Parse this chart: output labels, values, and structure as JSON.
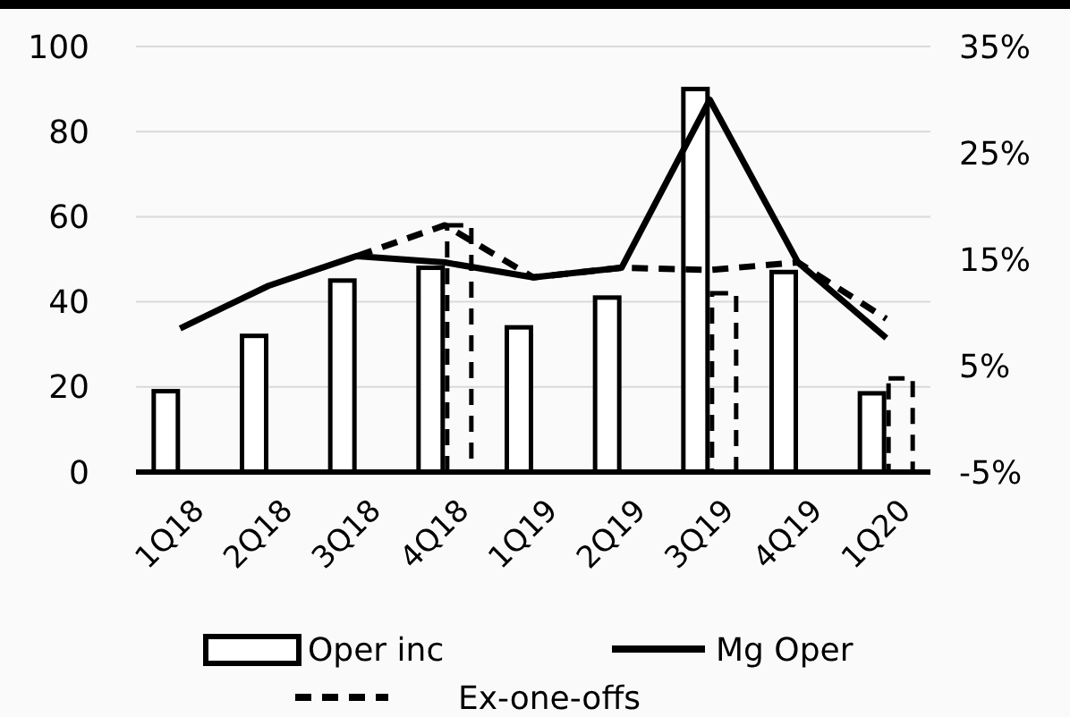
{
  "chart_data": {
    "type": "bar",
    "categories": [
      "1Q18",
      "2Q18",
      "3Q18",
      "4Q18",
      "1Q19",
      "2Q19",
      "3Q19",
      "4Q19",
      "1Q20"
    ],
    "series": [
      {
        "name": "Oper inc",
        "color": "#000000",
        "values": [
          19,
          32,
          45,
          48,
          34,
          41,
          90,
          47,
          18.5
        ]
      },
      {
        "color": "#000000",
        "line_style": "dashed",
        "values": [
          null,
          null,
          null,
          58,
          null,
          null,
          42,
          null,
          22
        ]
      },
      {
        "name": "Mg Oper",
        "type": "line",
        "axis": "y2",
        "color": "#000000",
        "values": [
          8.5,
          12.5,
          15.3,
          14.7,
          13.3,
          14.2,
          30,
          14.7,
          7.6
        ]
      },
      {
        "name": "Ex-one-offs",
        "type": "line",
        "axis": "y2",
        "color": "#000000",
        "line_style": "dashed",
        "values": [
          null,
          null,
          15.3,
          18.2,
          13.3,
          14.2,
          14,
          14.7,
          9.4
        ]
      }
    ],
    "ylim": [
      0,
      100
    ],
    "yticks": [
      0,
      20,
      40,
      60,
      80,
      100
    ],
    "y2lim": [
      -5,
      35
    ],
    "y2ticks": [
      {
        "value": -5,
        "label": "-5%"
      },
      {
        "value": 5,
        "label": "5%"
      },
      {
        "value": 15,
        "label": "15%"
      },
      {
        "value": 25,
        "label": "25%"
      },
      {
        "value": 35,
        "label": "35%"
      }
    ],
    "grid": "y",
    "legend": "bottom"
  }
}
